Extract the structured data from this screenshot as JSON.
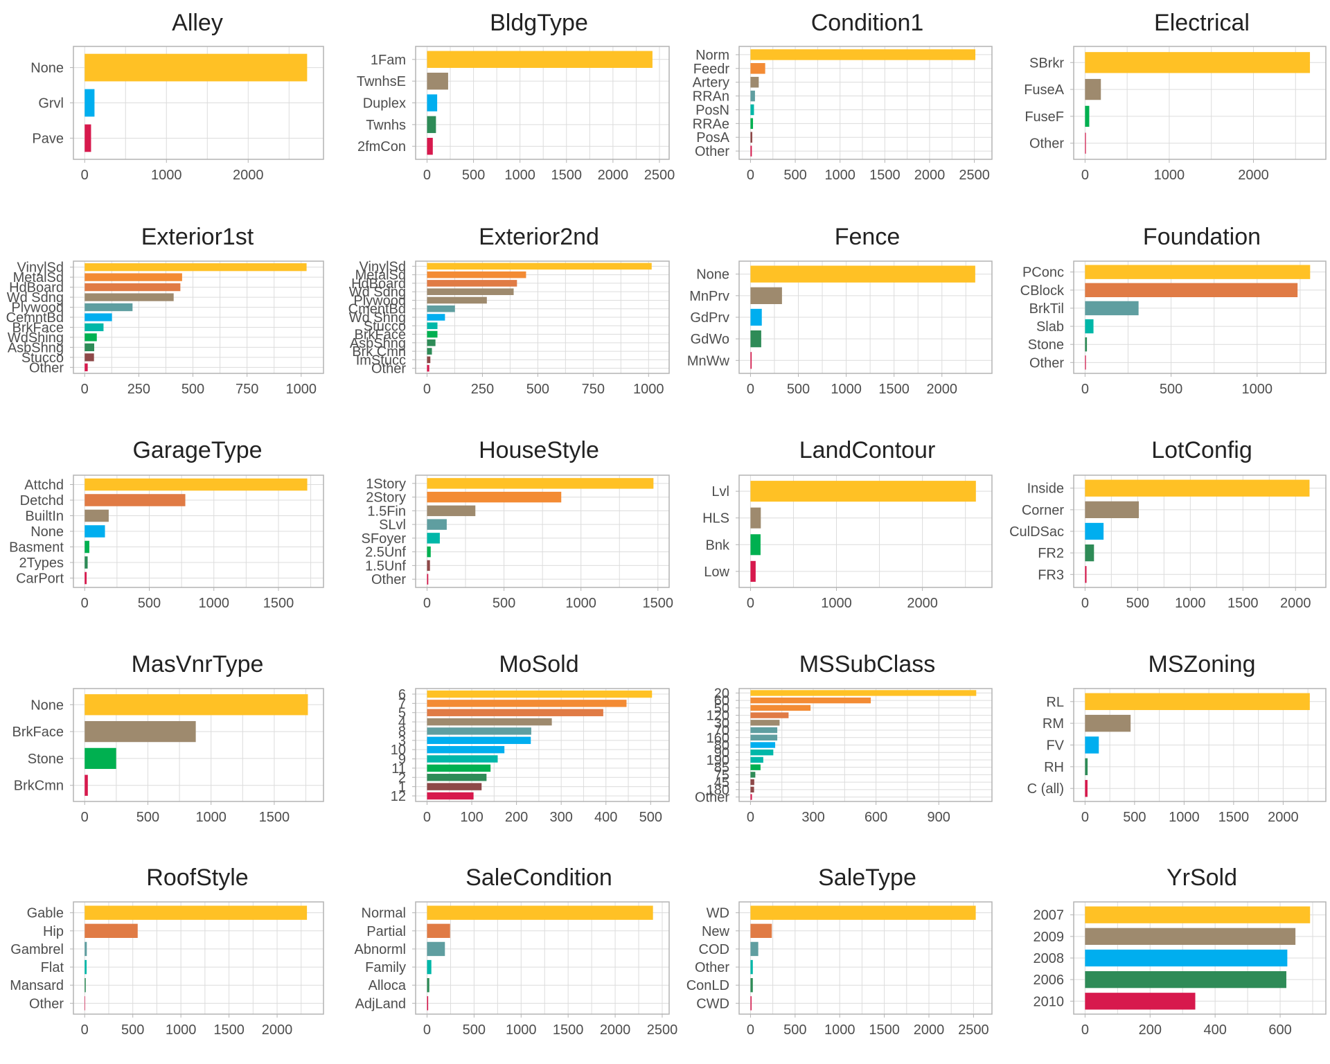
{
  "chart_data": [
    {
      "type": "bar",
      "title": "Alley",
      "categories": [
        "None",
        "Grvl",
        "Pave"
      ],
      "values": [
        2721,
        120,
        78
      ],
      "xlim": [
        0,
        2860
      ],
      "xticks": [
        0,
        1000,
        2000
      ]
    },
    {
      "type": "bar",
      "title": "BldgType",
      "categories": [
        "1Fam",
        "TwnhsE",
        "Duplex",
        "Twnhs",
        "2fmCon"
      ],
      "values": [
        2425,
        227,
        109,
        96,
        62
      ],
      "xlim": [
        0,
        2550
      ],
      "xticks": [
        0,
        500,
        1000,
        1500,
        2000,
        2500
      ]
    },
    {
      "type": "bar",
      "title": "Condition1",
      "categories": [
        "Norm",
        "Feedr",
        "Artery",
        "RRAn",
        "PosN",
        "RRAe",
        "PosA",
        "Other"
      ],
      "values": [
        2511,
        164,
        92,
        50,
        39,
        28,
        20,
        15
      ],
      "xlim": [
        0,
        2640
      ],
      "xticks": [
        0,
        500,
        1000,
        1500,
        2000,
        2500
      ]
    },
    {
      "type": "bar",
      "title": "Electrical",
      "categories": [
        "SBrkr",
        "FuseA",
        "FuseF",
        "Other"
      ],
      "values": [
        2671,
        188,
        50,
        10
      ],
      "xlim": [
        0,
        2800
      ],
      "xticks": [
        0,
        1000,
        2000
      ]
    },
    {
      "type": "bar",
      "title": "Exterior1st",
      "categories": [
        "VinylSd",
        "MetalSd",
        "HdBoard",
        "Wd Sdng",
        "Plywood",
        "CemntBd",
        "BrkFace",
        "WdShing",
        "AsbShng",
        "Stucco",
        "Other"
      ],
      "values": [
        1025,
        450,
        442,
        411,
        221,
        126,
        87,
        56,
        44,
        43,
        14
      ],
      "xlim": [
        0,
        1080
      ],
      "xticks": [
        0,
        250,
        500,
        750,
        1000
      ]
    },
    {
      "type": "bar",
      "title": "Exterior2nd",
      "categories": [
        "VinylSd",
        "MetalSd",
        "HdBoard",
        "Wd Sdng",
        "Plywood",
        "CmentBd",
        "Wd Shng",
        "Stucco",
        "BrkFace",
        "AsbShng",
        "Brk Cmn",
        "ImStucc",
        "Other"
      ],
      "values": [
        1014,
        447,
        406,
        391,
        270,
        126,
        81,
        47,
        47,
        38,
        22,
        15,
        10
      ],
      "xlim": [
        0,
        1070
      ],
      "xticks": [
        0,
        250,
        500,
        750,
        1000
      ]
    },
    {
      "type": "bar",
      "title": "Fence",
      "categories": [
        "None",
        "MnPrv",
        "GdPrv",
        "GdWo",
        "MnWw"
      ],
      "values": [
        2348,
        329,
        118,
        112,
        12
      ],
      "xlim": [
        0,
        2470
      ],
      "xticks": [
        0,
        500,
        1000,
        1500,
        2000
      ]
    },
    {
      "type": "bar",
      "title": "Foundation",
      "categories": [
        "PConc",
        "CBlock",
        "BrkTil",
        "Slab",
        "Stone",
        "Other"
      ],
      "values": [
        1308,
        1235,
        311,
        49,
        11,
        5
      ],
      "xlim": [
        0,
        1370
      ],
      "xticks": [
        0,
        500,
        1000
      ]
    },
    {
      "type": "bar",
      "title": "GarageType",
      "categories": [
        "Attchd",
        "Detchd",
        "BuiltIn",
        "None",
        "Basment",
        "2Types",
        "CarPort"
      ],
      "values": [
        1723,
        779,
        186,
        157,
        36,
        23,
        15
      ],
      "xlim": [
        0,
        1810
      ],
      "xticks": [
        0,
        500,
        1000,
        1500
      ]
    },
    {
      "type": "bar",
      "title": "HouseStyle",
      "categories": [
        "1Story",
        "2Story",
        "1.5Fin",
        "SLvl",
        "SFoyer",
        "2.5Unf",
        "1.5Unf",
        "Other"
      ],
      "values": [
        1471,
        872,
        314,
        128,
        83,
        24,
        19,
        8
      ],
      "xlim": [
        0,
        1540
      ],
      "xticks": [
        0,
        500,
        1000,
        1500
      ]
    },
    {
      "type": "bar",
      "title": "LandContour",
      "categories": [
        "Lvl",
        "HLS",
        "Bnk",
        "Low"
      ],
      "values": [
        2622,
        120,
        117,
        60
      ],
      "xlim": [
        0,
        2750
      ],
      "xticks": [
        0,
        1000,
        2000
      ]
    },
    {
      "type": "bar",
      "title": "LotConfig",
      "categories": [
        "Inside",
        "Corner",
        "CulDSac",
        "FR2",
        "FR3"
      ],
      "values": [
        2133,
        511,
        176,
        85,
        14
      ],
      "xlim": [
        0,
        2240
      ],
      "xticks": [
        0,
        500,
        1000,
        1500,
        2000
      ]
    },
    {
      "type": "bar",
      "title": "MasVnrType",
      "categories": [
        "None",
        "BrkFace",
        "Stone",
        "BrkCmn"
      ],
      "values": [
        1766,
        879,
        249,
        25
      ],
      "xlim": [
        0,
        1850
      ],
      "xticks": [
        0,
        500,
        1000,
        1500
      ]
    },
    {
      "type": "bar",
      "title": "MoSold",
      "categories": [
        "6",
        "7",
        "5",
        "4",
        "8",
        "3",
        "10",
        "9",
        "11",
        "2",
        "1",
        "12"
      ],
      "values": [
        503,
        446,
        394,
        279,
        233,
        232,
        173,
        158,
        142,
        133,
        122,
        104
      ],
      "xlim": [
        0,
        530
      ],
      "xticks": [
        0,
        100,
        200,
        300,
        400,
        500
      ]
    },
    {
      "type": "bar",
      "title": "MSSubClass",
      "categories": [
        "20",
        "60",
        "50",
        "120",
        "30",
        "70",
        "160",
        "80",
        "90",
        "190",
        "85",
        "75",
        "45",
        "180",
        "Other"
      ],
      "values": [
        1079,
        575,
        287,
        182,
        139,
        128,
        128,
        118,
        109,
        61,
        48,
        23,
        18,
        17,
        7
      ],
      "xlim": [
        0,
        1130
      ],
      "xticks": [
        0,
        300,
        600,
        900
      ]
    },
    {
      "type": "bar",
      "title": "MSZoning",
      "categories": [
        "RL",
        "RM",
        "FV",
        "RH",
        "C (all)"
      ],
      "values": [
        2269,
        460,
        139,
        26,
        25
      ],
      "xlim": [
        0,
        2380
      ],
      "xticks": [
        0,
        500,
        1000,
        1500,
        2000
      ]
    },
    {
      "type": "bar",
      "title": "RoofStyle",
      "categories": [
        "Gable",
        "Hip",
        "Gambrel",
        "Flat",
        "Mansard",
        "Other"
      ],
      "values": [
        2310,
        551,
        22,
        20,
        11,
        5
      ],
      "xlim": [
        0,
        2430
      ],
      "xticks": [
        0,
        500,
        1000,
        1500,
        2000
      ]
    },
    {
      "type": "bar",
      "title": "SaleCondition",
      "categories": [
        "Normal",
        "Partial",
        "Abnorml",
        "Family",
        "Alloca",
        "AdjLand"
      ],
      "values": [
        2402,
        245,
        190,
        46,
        24,
        12
      ],
      "xlim": [
        0,
        2520
      ],
      "xticks": [
        0,
        500,
        1000,
        1500,
        2000,
        2500
      ]
    },
    {
      "type": "bar",
      "title": "SaleType",
      "categories": [
        "WD",
        "New",
        "COD",
        "Other",
        "ConLD",
        "CWD"
      ],
      "values": [
        2525,
        239,
        87,
        26,
        26,
        12
      ],
      "xlim": [
        0,
        2650
      ],
      "xticks": [
        0,
        500,
        1000,
        1500,
        2000,
        2500
      ]
    },
    {
      "type": "bar",
      "title": "YrSold",
      "categories": [
        "2007",
        "2009",
        "2008",
        "2006",
        "2010"
      ],
      "values": [
        692,
        647,
        622,
        619,
        339
      ],
      "xlim": [
        0,
        725
      ],
      "xticks": [
        0,
        200,
        400,
        600
      ]
    }
  ],
  "palette": [
    "#FFC125",
    "#F38B34",
    "#E07B45",
    "#9E8A6E",
    "#5F9EA0",
    "#00AEEF",
    "#00B7A8",
    "#00B050",
    "#2E8B57",
    "#8E4848",
    "#D7194D"
  ]
}
